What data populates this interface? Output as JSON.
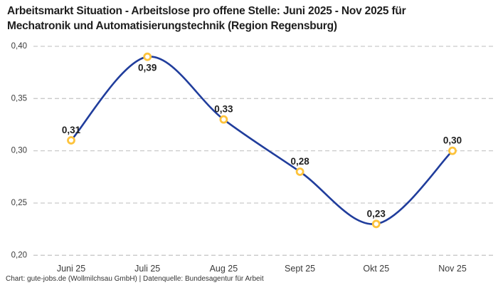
{
  "title_lines": {
    "line1": "Arbeitsmarkt Situation - Arbeitslose pro offene Stelle: Juni 2025 - Nov 2025 für",
    "line2": "Mechatronik und Automatisierungstechnik (Region Regensburg)"
  },
  "footer": "Chart: gute-jobs.de (Wollmilchsau GmbH) | Datenquelle: Bundesagentur für Arbeit",
  "chart_data": {
    "type": "line",
    "title": "Arbeitsmarkt Situation - Arbeitslose pro offene Stelle: Juni 2025 - Nov 2025 für Mechatronik und Automatisierungstechnik (Region Regensburg)",
    "categories": [
      "Juni 25",
      "Juli 25",
      "Aug 25",
      "Sept 25",
      "Okt 25",
      "Nov 25"
    ],
    "values": [
      0.31,
      0.39,
      0.33,
      0.28,
      0.23,
      0.3
    ],
    "value_labels": [
      "0,31",
      "0,39",
      "0,33",
      "0,28",
      "0,23",
      "0,30"
    ],
    "value_label_positions": [
      "above",
      "below",
      "above",
      "above",
      "above",
      "above"
    ],
    "ylim": [
      0.2,
      0.4
    ],
    "yticks": [
      {
        "value": 0.2,
        "label": "0,20"
      },
      {
        "value": 0.25,
        "label": "0,25"
      },
      {
        "value": 0.3,
        "label": "0,30"
      },
      {
        "value": 0.35,
        "label": "0,35"
      },
      {
        "value": 0.4,
        "label": "0,40"
      }
    ],
    "grid": "dashed horizontal",
    "legend": "none",
    "smooth": true,
    "colors": {
      "line": "#203d9c",
      "marker_stroke": "#fdc33c",
      "marker_fill": "#ffffff",
      "gridline": "#c9c9c9",
      "value_label": "#1f1f1f",
      "tick_label": "#3b3b3b",
      "title": "#1e1e1e",
      "background": "#ffffff"
    }
  }
}
